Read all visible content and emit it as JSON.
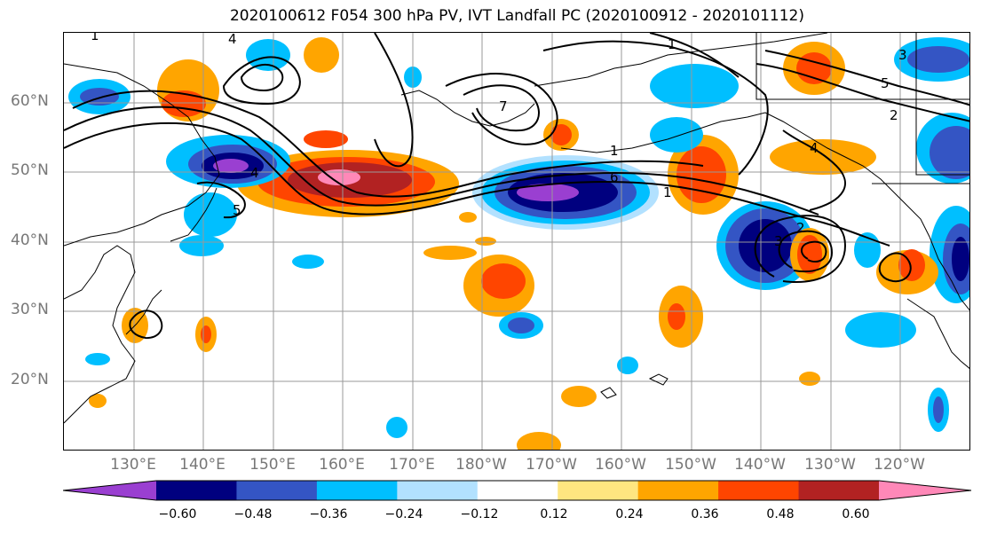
{
  "title": "2020100612 F054 300 hPa PV, IVT Landfall PC (2020100912 - 2020101112)",
  "map": {
    "lat_labels": [
      "60°N",
      "50°N",
      "40°N",
      "30°N",
      "20°N"
    ],
    "lon_labels": [
      "130°E",
      "140°E",
      "150°E",
      "160°E",
      "170°E",
      "180°W",
      "170°W",
      "160°W",
      "150°W",
      "140°W",
      "130°W",
      "120°W"
    ],
    "contour_labels": [
      "4",
      "1",
      "1",
      "5",
      "5",
      "4",
      "7",
      "1",
      "6",
      "1",
      "2",
      "3",
      "3",
      "2",
      "4"
    ]
  },
  "colorbar": {
    "colors": [
      "#9a3fd1",
      "#00007f",
      "#3455c4",
      "#00bfff",
      "#b2e1ff",
      "#ffffff",
      "#ffe680",
      "#ffa500",
      "#ff4500",
      "#b22222",
      "#ff88b8"
    ],
    "ticks": [
      "−0.60",
      "−0.48",
      "−0.36",
      "−0.24",
      "−0.12",
      "0.12",
      "0.24",
      "0.36",
      "0.48",
      "0.60"
    ]
  }
}
